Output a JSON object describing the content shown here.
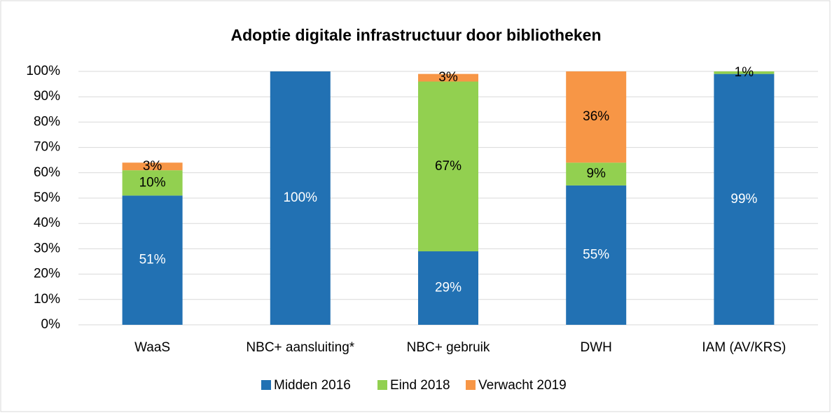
{
  "chart_data": {
    "type": "stacked_bar",
    "title": "Adoptie digitale infrastructuur door bibliotheken",
    "categories": [
      "WaaS",
      "NBC+ aansluiting*",
      "NBC+ gebruik",
      "DWH",
      "IAM (AV/KRS)"
    ],
    "series": [
      {
        "name": "Midden 2016",
        "color": "#2271b3",
        "values": [
          51,
          100,
          29,
          55,
          99
        ],
        "value_labels": [
          "51%",
          "100%",
          "29%",
          "55%",
          "99%"
        ]
      },
      {
        "name": "Eind 2018",
        "color": "#92d050",
        "values": [
          10,
          null,
          67,
          9,
          1
        ],
        "value_labels": [
          "10%",
          null,
          "67%",
          "9%",
          "1%"
        ]
      },
      {
        "name": "Verwacht 2019",
        "color": "#f79646",
        "values": [
          3,
          null,
          3,
          36,
          null
        ],
        "value_labels": [
          "3%",
          null,
          "3%",
          "36%",
          null
        ]
      }
    ],
    "ylim": [
      0,
      100
    ],
    "yticks": [
      {
        "value": 0,
        "label": "0%"
      },
      {
        "value": 10,
        "label": "10%"
      },
      {
        "value": 20,
        "label": "20%"
      },
      {
        "value": 30,
        "label": "30%"
      },
      {
        "value": 40,
        "label": "40%"
      },
      {
        "value": 50,
        "label": "50%"
      },
      {
        "value": 60,
        "label": "60%"
      },
      {
        "value": 70,
        "label": "70%"
      },
      {
        "value": 80,
        "label": "80%"
      },
      {
        "value": 90,
        "label": "90%"
      },
      {
        "value": 100,
        "label": "100%"
      }
    ],
    "grid": true,
    "legend": "bottom"
  }
}
